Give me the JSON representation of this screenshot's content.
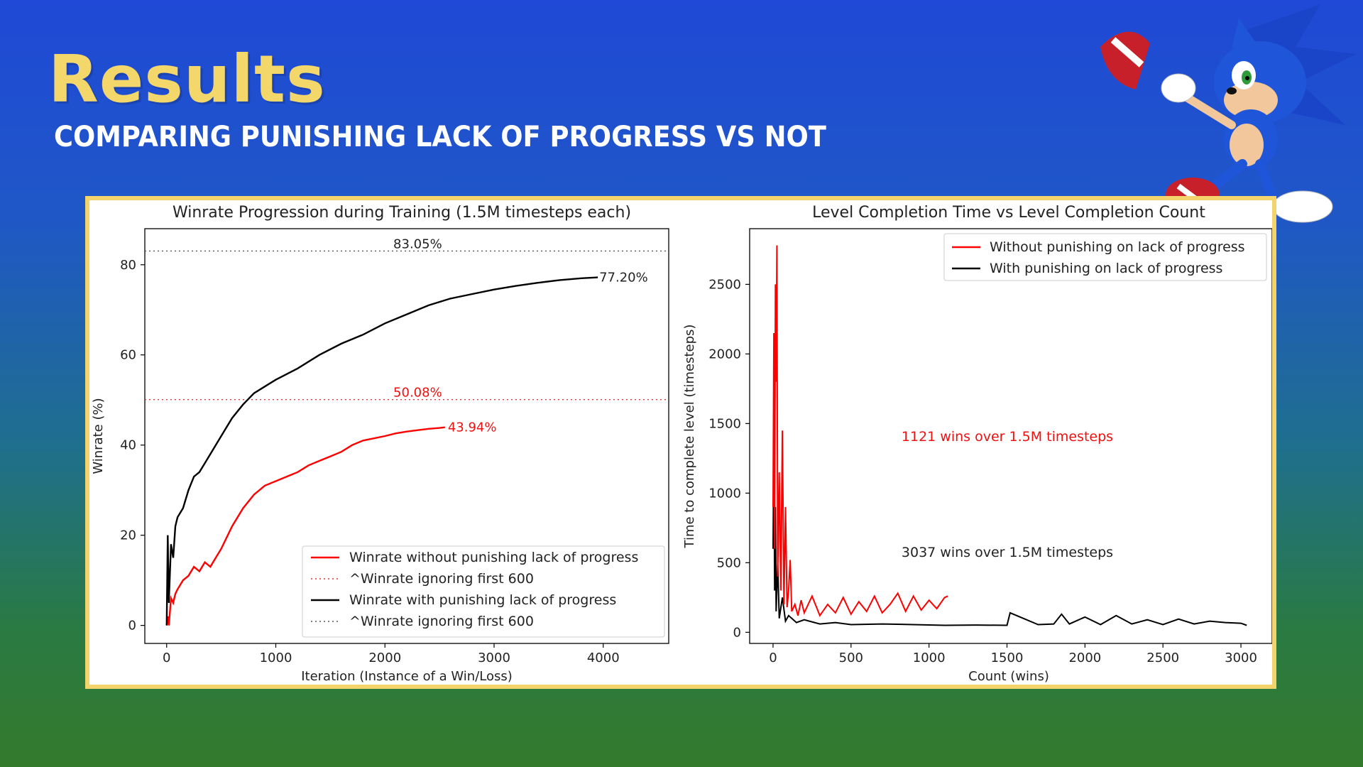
{
  "slide": {
    "title": "Results",
    "subtitle": "Comparing punishing lack of progress vs not"
  },
  "colors": {
    "title": "#f4d76a",
    "panel_border": "#f3d36c",
    "red_series": "#ff0000",
    "black_series": "#000000"
  },
  "mascot": {
    "icon": "sonic-hedgehog-icon"
  },
  "chart_data": [
    {
      "type": "line",
      "title": "Winrate Progression during Training (1.5M timesteps each)",
      "xlabel": "Iteration (Instance of a Win/Loss)",
      "ylabel": "Winrate (%)",
      "xlim": [
        -200,
        4600
      ],
      "ylim": [
        -4,
        88
      ],
      "xticks": [
        0,
        1000,
        2000,
        3000,
        4000
      ],
      "xtick_labels": [
        "0",
        "1000",
        "2000",
        "3000",
        "4000"
      ],
      "yticks": [
        0,
        20,
        40,
        60,
        80
      ],
      "ytick_labels": [
        "0",
        "20",
        "40",
        "60",
        "80"
      ],
      "series": [
        {
          "name": "Winrate without punishing lack of progress",
          "color": "#ff0000",
          "x": [
            0,
            10,
            20,
            40,
            60,
            80,
            100,
            150,
            200,
            250,
            300,
            350,
            400,
            450,
            500,
            600,
            700,
            800,
            900,
            1000,
            1100,
            1200,
            1300,
            1400,
            1500,
            1600,
            1700,
            1800,
            1900,
            2000,
            2100,
            2200,
            2300,
            2400,
            2500,
            2550
          ],
          "y": [
            0,
            2,
            0,
            6,
            5,
            7,
            8,
            10,
            11,
            13,
            12,
            14,
            13,
            15,
            17,
            22,
            26,
            29,
            31,
            32,
            33,
            34,
            35.5,
            36.5,
            37.5,
            38.5,
            40,
            41,
            41.5,
            42,
            42.6,
            43,
            43.3,
            43.6,
            43.8,
            43.94
          ]
        },
        {
          "name": "^Winrate ignoring first 600",
          "color": "#ff0000",
          "style": "dotted",
          "y_const": 50.08,
          "label": "50.08%"
        },
        {
          "name": "Winrate with punishing lack of progress",
          "color": "#000000",
          "x": [
            0,
            10,
            20,
            40,
            60,
            80,
            100,
            150,
            200,
            250,
            300,
            350,
            400,
            500,
            600,
            700,
            800,
            900,
            1000,
            1200,
            1400,
            1600,
            1800,
            2000,
            2200,
            2400,
            2600,
            2800,
            3000,
            3200,
            3400,
            3600,
            3800,
            3950
          ],
          "y": [
            0,
            20,
            5,
            18,
            15,
            22,
            24,
            26,
            30,
            33,
            34,
            36,
            38,
            42,
            46,
            49,
            51.5,
            53,
            54.5,
            57,
            60,
            62.5,
            64.5,
            67,
            69,
            71,
            72.5,
            73.5,
            74.5,
            75.3,
            76,
            76.6,
            77,
            77.2
          ]
        },
        {
          "name": "^Winrate ignoring first 600",
          "color": "#555555",
          "style": "dotted",
          "y_const": 83.05,
          "label": "83.05%"
        }
      ],
      "end_labels": [
        "77.20%",
        "43.94%"
      ],
      "legend_position": "bottom-right"
    },
    {
      "type": "line",
      "title": "Level Completion Time vs Level Completion Count",
      "xlabel": "Count (wins)",
      "ylabel": "Time to complete level (timesteps)",
      "xlim": [
        -150,
        3200
      ],
      "ylim": [
        -80,
        2900
      ],
      "xticks": [
        0,
        500,
        1000,
        1500,
        2000,
        2500,
        3000
      ],
      "xtick_labels": [
        "0",
        "500",
        "1000",
        "1500",
        "2000",
        "2500",
        "3000"
      ],
      "yticks": [
        0,
        500,
        1000,
        1500,
        2000,
        2500
      ],
      "ytick_labels": [
        "0",
        "500",
        "1000",
        "1500",
        "2000",
        "2500"
      ],
      "series": [
        {
          "name": "Without punishing on lack of progress",
          "color": "#ff0000",
          "x": [
            0,
            5,
            10,
            15,
            20,
            25,
            30,
            40,
            50,
            60,
            70,
            80,
            90,
            100,
            110,
            120,
            140,
            160,
            180,
            200,
            250,
            300,
            350,
            400,
            450,
            500,
            550,
            600,
            650,
            700,
            750,
            800,
            850,
            900,
            950,
            1000,
            1050,
            1100,
            1121
          ],
          "y": [
            900,
            2150,
            600,
            2500,
            1800,
            2780,
            400,
            1150,
            300,
            1450,
            200,
            900,
            180,
            300,
            520,
            150,
            200,
            120,
            230,
            140,
            260,
            120,
            200,
            140,
            250,
            130,
            220,
            150,
            260,
            140,
            200,
            280,
            150,
            260,
            160,
            230,
            170,
            250,
            260
          ]
        },
        {
          "name": "With punishing on lack of progress",
          "color": "#000000",
          "x": [
            0,
            5,
            10,
            15,
            20,
            30,
            40,
            60,
            80,
            100,
            150,
            200,
            300,
            400,
            500,
            700,
            900,
            1100,
            1300,
            1500,
            1520,
            1700,
            1800,
            1850,
            1900,
            2000,
            2100,
            2200,
            2300,
            2400,
            2500,
            2600,
            2700,
            2800,
            2900,
            3000,
            3037
          ],
          "y": [
            600,
            1380,
            300,
            900,
            150,
            500,
            100,
            250,
            80,
            120,
            70,
            90,
            60,
            70,
            55,
            60,
            55,
            50,
            52,
            50,
            140,
            55,
            60,
            130,
            60,
            110,
            55,
            120,
            60,
            90,
            55,
            95,
            60,
            80,
            70,
            65,
            50
          ]
        }
      ],
      "annotations": [
        "1121 wins over 1.5M timesteps",
        "3037 wins over 1.5M timesteps"
      ],
      "legend_position": "top-right"
    }
  ]
}
